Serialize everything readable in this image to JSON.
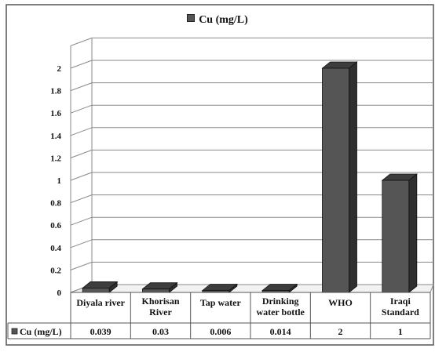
{
  "chart_data": {
    "type": "bar",
    "categories": [
      "Diyala river",
      "Khorisan River",
      "Tap water",
      "Drinking water bottle",
      "WHO",
      "Iraqi Standard"
    ],
    "category_lines": [
      [
        "Diyala river"
      ],
      [
        "Khorisan",
        "River"
      ],
      [
        "Tap water"
      ],
      [
        "Drinking",
        "water bottle"
      ],
      [
        "WHO"
      ],
      [
        "Iraqi",
        "Standard"
      ]
    ],
    "series": [
      {
        "name": "Cu (mg/L)",
        "values": [
          0.039,
          0.03,
          0.006,
          0.014,
          2,
          1
        ]
      }
    ],
    "value_labels": [
      "0.039",
      "0.03",
      "0.006",
      "0.014",
      "2",
      "1"
    ],
    "y_ticks": [
      0,
      0.2,
      0.4,
      0.6,
      0.8,
      1,
      1.2,
      1.4,
      1.6,
      1.8,
      2
    ],
    "y_tick_labels": [
      "0",
      "0.2",
      "0.4",
      "0.6",
      "0.8",
      "1",
      "1.2",
      "1.4",
      "1.6",
      "1.8",
      "2"
    ],
    "ylim": [
      0,
      2.2
    ],
    "legend": {
      "label": "Cu (mg/L)",
      "position": "top-center"
    },
    "data_table": true,
    "grid": true,
    "bar_color": "#555555"
  }
}
